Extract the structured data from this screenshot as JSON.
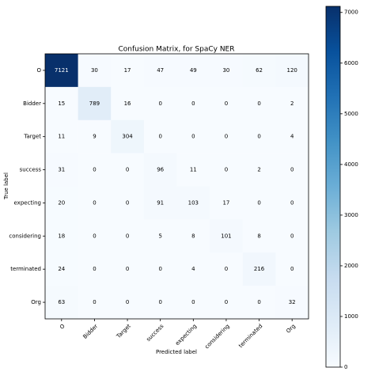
{
  "chart_data": {
    "type": "heatmap",
    "title": "Confusion Matrix, for SpaCy NER",
    "xlabel": "Predicted label",
    "ylabel": "True label",
    "categories": [
      "O",
      "Bidder",
      "Target",
      "success",
      "expecting",
      "considering",
      "terminated",
      "Org"
    ],
    "matrix": [
      [
        7121,
        30,
        17,
        47,
        49,
        30,
        62,
        120
      ],
      [
        15,
        789,
        16,
        0,
        0,
        0,
        0,
        2
      ],
      [
        11,
        9,
        304,
        0,
        0,
        0,
        0,
        4
      ],
      [
        31,
        0,
        0,
        96,
        11,
        0,
        2,
        0
      ],
      [
        20,
        0,
        0,
        91,
        103,
        17,
        0,
        0
      ],
      [
        18,
        0,
        0,
        5,
        8,
        101,
        8,
        0
      ],
      [
        24,
        0,
        0,
        0,
        4,
        0,
        216,
        0
      ],
      [
        63,
        0,
        0,
        0,
        0,
        0,
        0,
        32
      ]
    ],
    "colormap": [
      "#f7fbff",
      "#deebf7",
      "#c6dbef",
      "#9ecae1",
      "#6baed6",
      "#4292c6",
      "#2171b5",
      "#08519c",
      "#08306b"
    ],
    "clim": [
      0,
      7121
    ],
    "cticks": [
      0,
      1000,
      2000,
      3000,
      4000,
      5000,
      6000,
      7000
    ]
  }
}
